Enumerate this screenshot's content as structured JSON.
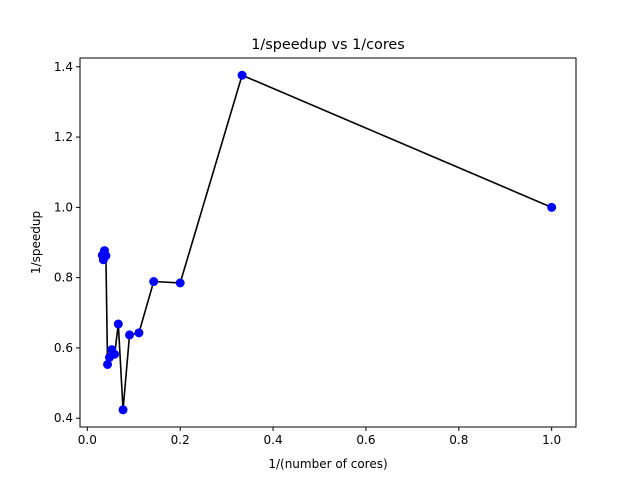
{
  "chart_data": {
    "type": "line",
    "title": "1/speedup vs 1/cores",
    "xlabel": "1/(number of cores)",
    "ylabel": "1/speedup",
    "xlim": [
      -0.0158,
      1.0524
    ],
    "ylim": [
      0.375,
      1.425
    ],
    "xticks": [
      0.0,
      0.2,
      0.4,
      0.6,
      0.8,
      1.0
    ],
    "xtick_labels": [
      "0.0",
      "0.2",
      "0.4",
      "0.6",
      "0.8",
      "1.0"
    ],
    "yticks": [
      0.4,
      0.6,
      0.8,
      1.0,
      1.2,
      1.4
    ],
    "ytick_labels": [
      "0.4",
      "0.6",
      "0.8",
      "1.0",
      "1.2",
      "1.4"
    ],
    "grid": false,
    "line_color": "#000000",
    "marker_color": "#0000ff",
    "series": [
      {
        "x": [
          1.0,
          0.3333,
          0.2,
          0.1429,
          0.1111,
          0.0909,
          0.0769,
          0.0667,
          0.0588,
          0.0526,
          0.0476,
          0.0435,
          0.04,
          0.037,
          0.0345,
          0.0323
        ],
        "y": [
          1.0,
          1.376,
          0.785,
          0.789,
          0.643,
          0.637,
          0.424,
          0.668,
          0.582,
          0.595,
          0.573,
          0.553,
          0.862,
          0.877,
          0.851,
          0.864
        ]
      }
    ]
  }
}
